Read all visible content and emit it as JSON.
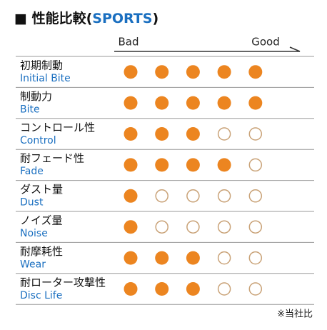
{
  "header": {
    "title": "■ 性能比較",
    "open": "(",
    "accent": "SPORTS",
    "close": ")"
  },
  "scale": {
    "low": "Bad",
    "high": "Good",
    "max": 5
  },
  "table": {
    "rows": [
      {
        "jp": "初期制動",
        "en": "Initial Bite",
        "rating": 5
      },
      {
        "jp": "制動力",
        "en": "Bite",
        "rating": 5
      },
      {
        "jp": "コントロール性",
        "en": "Control",
        "rating": 3
      },
      {
        "jp": "耐フェード性",
        "en": "Fade",
        "rating": 4
      },
      {
        "jp": "ダスト量",
        "en": "Dust",
        "rating": 1
      },
      {
        "jp": "ノイズ量",
        "en": "Noise",
        "rating": 1
      },
      {
        "jp": "耐摩耗性",
        "en": "Wear",
        "rating": 3
      },
      {
        "jp": "耐ローター攻撃性",
        "en": "Disc Life",
        "rating": 3
      }
    ]
  },
  "footnote": "※当社比"
}
